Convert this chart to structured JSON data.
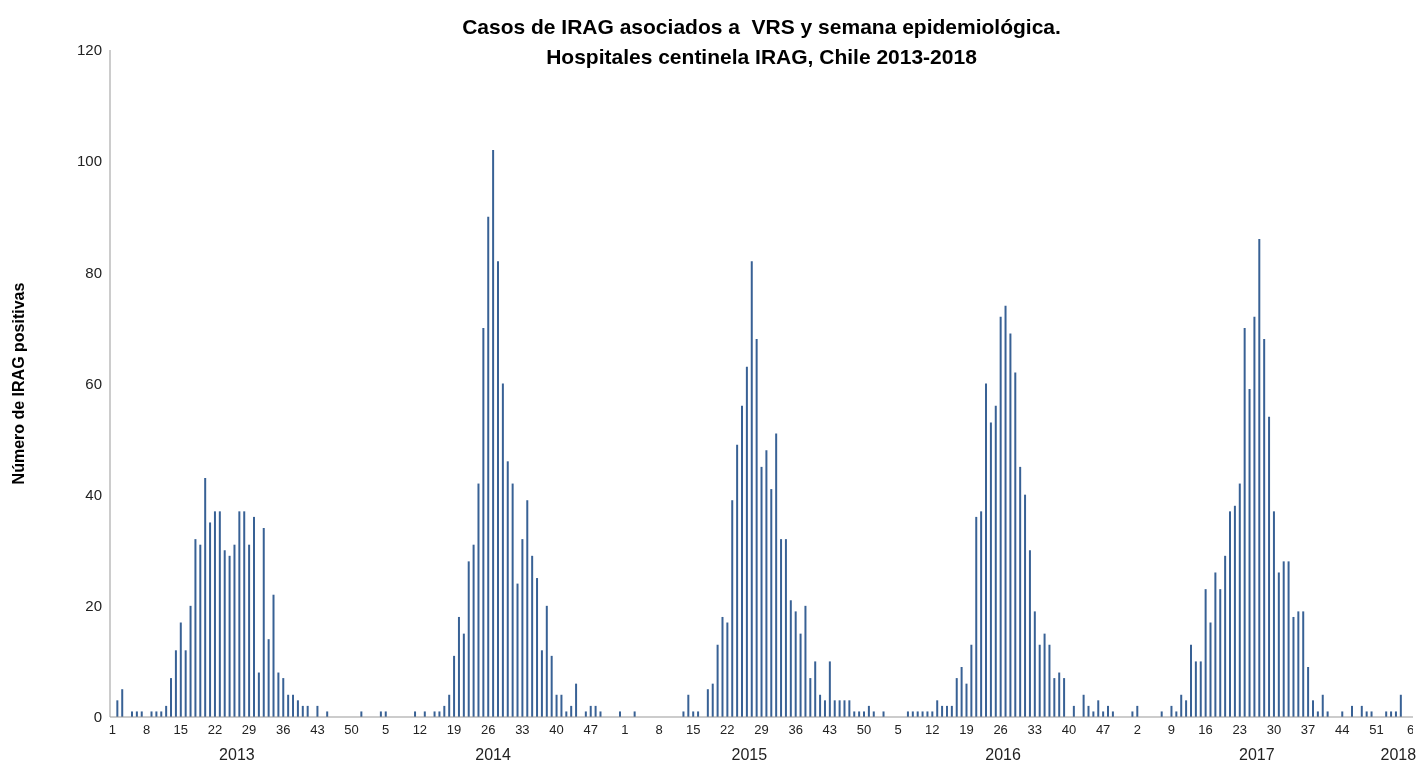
{
  "chart_data": {
    "type": "bar",
    "title": "Casos de IRAG asociados a  VRS y semana epidemiológica.\nHospitales centinela IRAG, Chile 2013-2018",
    "ylabel": "Número de IRAG positivas",
    "color": "#386195",
    "ylim": [
      0,
      120
    ],
    "yticks": [
      0,
      20,
      40,
      60,
      80,
      100,
      120
    ],
    "annotations": [
      "2013",
      "2014",
      "2015",
      "2016",
      "2017",
      "2018"
    ],
    "categories": [
      "1",
      null,
      null,
      null,
      null,
      null,
      null,
      "8",
      null,
      null,
      null,
      null,
      null,
      null,
      "15",
      null,
      null,
      null,
      null,
      null,
      null,
      "22",
      null,
      null,
      null,
      null,
      null,
      null,
      "29",
      null,
      null,
      null,
      null,
      null,
      null,
      "36",
      null,
      null,
      null,
      null,
      null,
      null,
      "43",
      null,
      null,
      null,
      null,
      null,
      null,
      "50",
      null,
      null,
      null,
      null,
      null,
      null,
      "5",
      null,
      null,
      null,
      null,
      null,
      null,
      "12",
      null,
      null,
      null,
      null,
      null,
      null,
      "19",
      null,
      null,
      null,
      null,
      null,
      null,
      "26",
      null,
      null,
      null,
      null,
      null,
      null,
      "33",
      null,
      null,
      null,
      null,
      null,
      null,
      "40",
      null,
      null,
      null,
      null,
      null,
      null,
      "47",
      null,
      null,
      null,
      null,
      null,
      null,
      "1",
      null,
      null,
      null,
      null,
      null,
      null,
      "8",
      null,
      null,
      null,
      null,
      null,
      null,
      "15",
      null,
      null,
      null,
      null,
      null,
      null,
      "22",
      null,
      null,
      null,
      null,
      null,
      null,
      "29",
      null,
      null,
      null,
      null,
      null,
      null,
      "36",
      null,
      null,
      null,
      null,
      null,
      null,
      "43",
      null,
      null,
      null,
      null,
      null,
      null,
      "50",
      null,
      null,
      null,
      null,
      null,
      null,
      "5",
      null,
      null,
      null,
      null,
      null,
      null,
      "12",
      null,
      null,
      null,
      null,
      null,
      null,
      "19",
      null,
      null,
      null,
      null,
      null,
      null,
      "26",
      null,
      null,
      null,
      null,
      null,
      null,
      "33",
      null,
      null,
      null,
      null,
      null,
      null,
      "40",
      null,
      null,
      null,
      null,
      null,
      null,
      "47",
      null,
      null,
      null,
      null,
      null,
      null,
      "2",
      null,
      null,
      null,
      null,
      null,
      null,
      "9",
      null,
      null,
      null,
      null,
      null,
      null,
      "16",
      null,
      null,
      null,
      null,
      null,
      null,
      "23",
      null,
      null,
      null,
      null,
      null,
      null,
      "30",
      null,
      null,
      null,
      null,
      null,
      null,
      "37",
      null,
      null,
      null,
      null,
      null,
      null,
      "44",
      null,
      null,
      null,
      null,
      null,
      null,
      "51",
      null,
      null,
      null,
      null,
      null,
      null,
      "6"
    ],
    "values": [
      0,
      3,
      5,
      0,
      1,
      1,
      1,
      0,
      1,
      1,
      1,
      2,
      7,
      12,
      17,
      12,
      20,
      32,
      31,
      43,
      35,
      37,
      37,
      30,
      29,
      31,
      37,
      37,
      31,
      36,
      8,
      34,
      14,
      22,
      8,
      7,
      4,
      4,
      3,
      2,
      2,
      0,
      2,
      0,
      1,
      0,
      0,
      0,
      0,
      0,
      0,
      1,
      0,
      0,
      0,
      1,
      1,
      0,
      0,
      0,
      0,
      0,
      1,
      0,
      1,
      0,
      1,
      1,
      2,
      4,
      11,
      18,
      15,
      28,
      31,
      42,
      70,
      90,
      102,
      82,
      60,
      46,
      42,
      24,
      32,
      39,
      29,
      25,
      12,
      20,
      11,
      4,
      4,
      1,
      2,
      6,
      0,
      1,
      2,
      2,
      1,
      0,
      0,
      0,
      1,
      0,
      0,
      1,
      0,
      0,
      0,
      0,
      0,
      0,
      0,
      0,
      0,
      1,
      4,
      1,
      1,
      0,
      5,
      6,
      13,
      18,
      17,
      39,
      49,
      56,
      63,
      82,
      68,
      45,
      48,
      41,
      51,
      32,
      32,
      21,
      19,
      15,
      20,
      7,
      10,
      4,
      3,
      10,
      3,
      3,
      3,
      3,
      1,
      1,
      1,
      2,
      1,
      0,
      1,
      0,
      0,
      0,
      0,
      1,
      1,
      1,
      1,
      1,
      1,
      3,
      2,
      2,
      2,
      7,
      9,
      6,
      13,
      36,
      37,
      60,
      53,
      56,
      72,
      74,
      69,
      62,
      45,
      40,
      30,
      19,
      13,
      15,
      13,
      7,
      8,
      7,
      0,
      2,
      0,
      4,
      2,
      1,
      3,
      1,
      2,
      1,
      0,
      0,
      0,
      1,
      2,
      0,
      0,
      0,
      0,
      1,
      0,
      2,
      1,
      4,
      3,
      13,
      10,
      10,
      23,
      17,
      26,
      23,
      29,
      37,
      38,
      42,
      70,
      59,
      72,
      86,
      68,
      54,
      37,
      26,
      28,
      28,
      18,
      19,
      19,
      9,
      3,
      1,
      4,
      1,
      0,
      0,
      1,
      0,
      2,
      0,
      2,
      1,
      1,
      0,
      0,
      1,
      1,
      1,
      4,
      0,
      0
    ]
  }
}
